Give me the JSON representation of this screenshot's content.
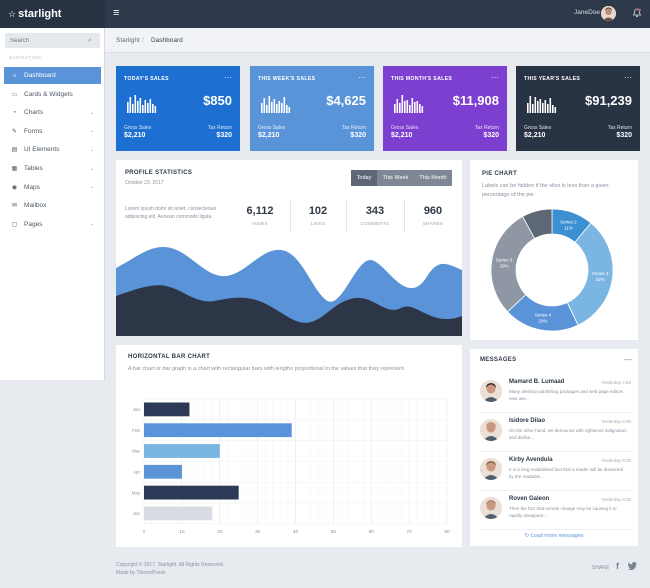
{
  "brand": {
    "name": "starlight",
    "star_glyph": "☆"
  },
  "topbar": {
    "menu_glyph": "≡",
    "username": "JaneDoe",
    "bell_glyph": "🔔"
  },
  "sidebar": {
    "search_placeholder": "Search",
    "search_glyph": "⌕",
    "heading": "NAVIGATION",
    "items": [
      {
        "label": "Dashboard",
        "icon": "home-icon",
        "glyph": "⌂",
        "active": true,
        "has_children": false
      },
      {
        "label": "Cards & Widgets",
        "icon": "cards-icon",
        "glyph": "▭",
        "active": false,
        "has_children": false
      },
      {
        "label": "Charts",
        "icon": "pie-icon",
        "glyph": "◔",
        "active": false,
        "has_children": true
      },
      {
        "label": "Forms",
        "icon": "forms-icon",
        "glyph": "✎",
        "active": false,
        "has_children": true
      },
      {
        "label": "UI Elements",
        "icon": "ui-icon",
        "glyph": "▤",
        "active": false,
        "has_children": true
      },
      {
        "label": "Tables",
        "icon": "table-icon",
        "glyph": "▦",
        "active": false,
        "has_children": true
      },
      {
        "label": "Maps",
        "icon": "map-icon",
        "glyph": "◉",
        "active": false,
        "has_children": true
      },
      {
        "label": "Mailbox",
        "icon": "mail-icon",
        "glyph": "✉",
        "active": false,
        "has_children": false
      },
      {
        "label": "Pages",
        "icon": "pages-icon",
        "glyph": "▢",
        "active": false,
        "has_children": true
      }
    ],
    "chevron_glyph": "⌄"
  },
  "breadcrumb": {
    "root": "Starlight",
    "separator": "/",
    "current": "Dashboard"
  },
  "stat_cards": [
    {
      "title": "TODAY'S SALES",
      "value": "$850",
      "left_label": "Gross Sales",
      "left_value": "$2,210",
      "right_label": "Tax Return",
      "right_value": "$320",
      "color": "#1d6fd1",
      "bars": [
        0.55,
        0.8,
        0.45,
        0.9,
        0.6,
        0.75,
        0.4,
        0.65,
        0.5,
        0.7,
        0.45,
        0.35
      ]
    },
    {
      "title": "THIS WEEK'S SALES",
      "value": "$4,625",
      "left_label": "Gross Sales",
      "left_value": "$2,210",
      "right_label": "Tax Return",
      "right_value": "$320",
      "color": "#5a94d8",
      "bars": [
        0.5,
        0.75,
        0.4,
        0.85,
        0.55,
        0.7,
        0.45,
        0.6,
        0.5,
        0.8,
        0.4,
        0.3
      ]
    },
    {
      "title": "THIS MONTH'S SALES",
      "value": "$11,908",
      "left_label": "Gross Sales",
      "left_value": "$2,210",
      "right_label": "Tax Return",
      "right_value": "$320",
      "color": "#7c3fd0",
      "bars": [
        0.45,
        0.7,
        0.5,
        0.9,
        0.6,
        0.65,
        0.4,
        0.75,
        0.55,
        0.6,
        0.45,
        0.35
      ]
    },
    {
      "title": "THIS YEAR'S SALES",
      "value": "$91,239",
      "left_label": "Gross Sales",
      "left_value": "$2,210",
      "right_label": "Tax Return",
      "right_value": "$320",
      "color": "#283344",
      "bars": [
        0.5,
        0.85,
        0.45,
        0.8,
        0.6,
        0.7,
        0.5,
        0.65,
        0.45,
        0.75,
        0.4,
        0.3
      ]
    }
  ],
  "card_menu_glyph": "···",
  "profile": {
    "title": "PROFILE STATISTICS",
    "date": "October 23, 2017",
    "segments": [
      {
        "label": "Today",
        "selected": true
      },
      {
        "label": "This Week",
        "selected": false
      },
      {
        "label": "This Month",
        "selected": false
      }
    ],
    "description": "Lorem ipsum dolor sit amet, consectetuer adipiscing elit. Aenean commodo ligula.",
    "metrics": [
      {
        "value": "6,112",
        "label": "VIEWS"
      },
      {
        "value": "102",
        "label": "LIKES"
      },
      {
        "value": "343",
        "label": "COMMENTS"
      },
      {
        "value": "960",
        "label": "SHARES"
      }
    ],
    "colors": {
      "back": "#5b93d8",
      "front": "#2c3647"
    }
  },
  "pie": {
    "title": "PIE CHART",
    "description": "Labels can be hidden if the slice is less than a given percentage of the pie",
    "colors": [
      "#3c8fd0",
      "#7bb5e2",
      "#5b93d8",
      "#8e97a3",
      "#5d6775"
    ],
    "chart_data": {
      "type": "pie",
      "categories": [
        "Series 2",
        "Series 3",
        "Series 4",
        "Series 5",
        "Series 1"
      ],
      "values": [
        11,
        32,
        20,
        29,
        8
      ],
      "labels": [
        "11%",
        "32%",
        "20%",
        "29%",
        ""
      ]
    }
  },
  "hbar": {
    "title": "HORIZONTAL BAR CHART",
    "description": "A bar chart or bar graph is a chart with rectangular bars with lengths proportional to the values that they represent.",
    "colors": [
      "#2c3a57",
      "#5b93d8",
      "#7bb5e2",
      "#5b93d8",
      "#2c3a57",
      "#d8dde4"
    ],
    "chart_data": {
      "type": "bar",
      "orientation": "horizontal",
      "categories": [
        "Jan",
        "Feb",
        "Mar",
        "Apr",
        "May",
        "Jun"
      ],
      "values": [
        12,
        39,
        20,
        10,
        25,
        18
      ],
      "xlim": [
        0,
        80
      ],
      "xticks": [
        0,
        10,
        20,
        30,
        40,
        50,
        60,
        70,
        80
      ],
      "grid": true
    }
  },
  "messages": {
    "title": "MESSAGES",
    "collapse_glyph": "—",
    "items": [
      {
        "name": "Mamard B. Lumaad",
        "time": "Yesterday 4:56",
        "text": "Many desktop publishing packages and web page editors now use...",
        "avatar_color": "#2b2624"
      },
      {
        "name": "Isidore Dilao",
        "time": "Yesterday 8:00",
        "text": "On the other hand, we denounce with righteous indignation and dislike...",
        "avatar_color": "#c48f7a"
      },
      {
        "name": "Kirby Avendula",
        "time": "Yesterday 8:00",
        "text": "It is a long established fact that a reader will be distracted by the readable...",
        "avatar_color": "#8a5b44"
      },
      {
        "name": "Roven Galeon",
        "time": "Yesterday 8:00",
        "text": "Then the fact that remote change may be causing it to rapidly disappear...",
        "avatar_color": "#a88572"
      }
    ],
    "load_more": "↻ Load more messages"
  },
  "footer": {
    "copyright": "Copyright © 2017. Starlight. All Rights Reserved.",
    "credit": "Made by ThemePixels",
    "share": "SHARE",
    "facebook_glyph": "f",
    "twitter_glyph": "🐦"
  }
}
